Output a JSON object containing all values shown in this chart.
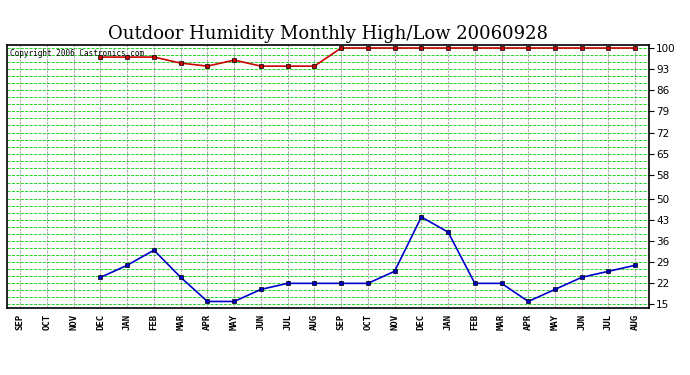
{
  "title": "Outdoor Humidity Monthly High/Low 20060928",
  "copyright": "Copyright 2006 Castronics.com",
  "x_labels": [
    "SEP",
    "OCT",
    "NOV",
    "DEC",
    "JAN",
    "FEB",
    "MAR",
    "APR",
    "MAY",
    "JUN",
    "JUL",
    "AUG",
    "SEP",
    "OCT",
    "NOV",
    "DEC",
    "JAN",
    "FEB",
    "MAR",
    "APR",
    "MAY",
    "JUN",
    "JUL",
    "AUG"
  ],
  "high_values": [
    null,
    null,
    null,
    97,
    97,
    97,
    95,
    94,
    96,
    94,
    94,
    94,
    100,
    100,
    100,
    100,
    100,
    100,
    100,
    100,
    100,
    100,
    100,
    100
  ],
  "low_values": [
    null,
    null,
    null,
    24,
    28,
    33,
    24,
    16,
    16,
    20,
    22,
    22,
    22,
    22,
    26,
    44,
    39,
    22,
    22,
    16,
    20,
    24,
    26,
    28
  ],
  "high_color": "#cc0000",
  "low_color": "#0000cc",
  "bg_color": "#ffffff",
  "plot_bg_color": "#ffffff",
  "grid_h_color": "#00cc00",
  "grid_v_color": "#888888",
  "y_ticks": [
    15,
    22,
    29,
    36,
    43,
    50,
    58,
    65,
    72,
    79,
    86,
    93,
    100
  ],
  "ylim": [
    14,
    101
  ],
  "title_fontsize": 13,
  "marker": "s",
  "marker_size": 3,
  "line_width": 1.2
}
